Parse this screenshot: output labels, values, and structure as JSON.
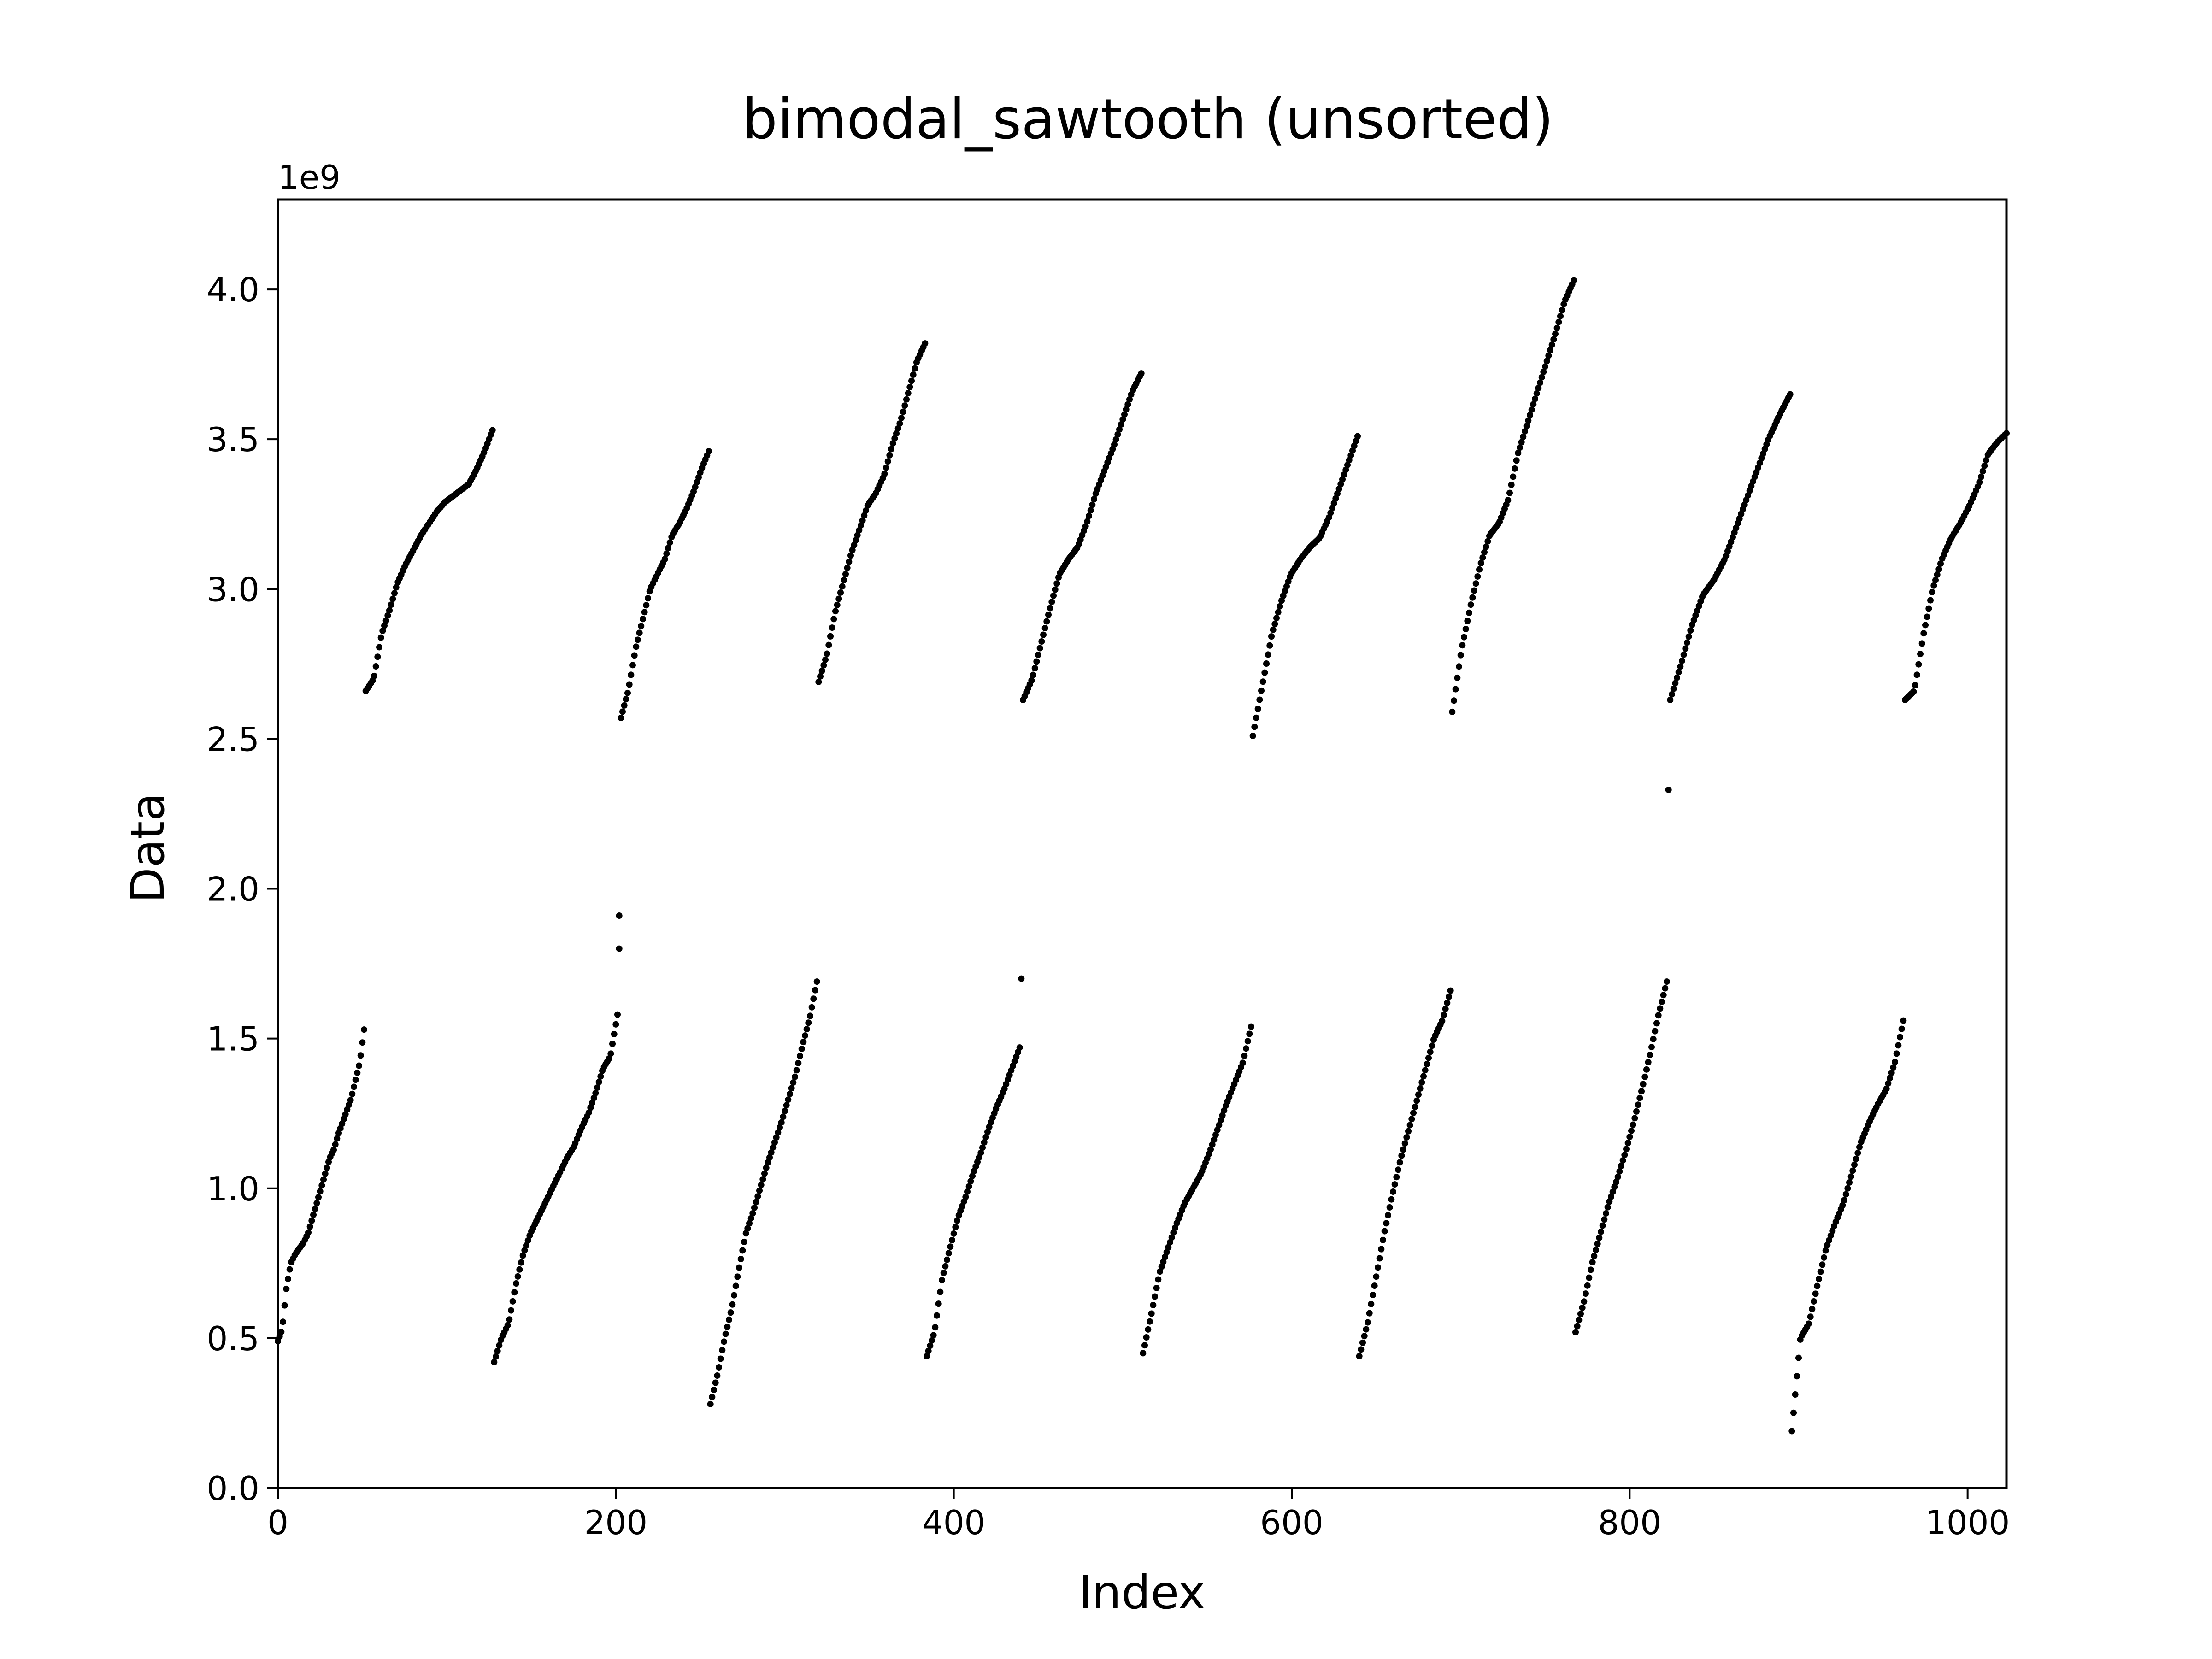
{
  "chart_data": {
    "type": "scatter",
    "title": "bimodal_sawtooth (unsorted)",
    "xlabel": "Index",
    "ylabel": "Data",
    "y_offset_label": "1e9",
    "xlim": [
      0,
      1023
    ],
    "ylim": [
      0,
      4.3
    ],
    "y_scale": 1000000000,
    "grid": false,
    "legend": "none",
    "marker_color": "#000000",
    "x_ticks": [
      0,
      200,
      400,
      600,
      800,
      1000
    ],
    "x_tick_labels": [
      "0",
      "200",
      "400",
      "600",
      "800",
      "1000"
    ],
    "y_ticks": [
      0,
      0.5,
      1.0,
      1.5,
      2.0,
      2.5,
      3.0,
      3.5,
      4.0
    ],
    "y_tick_labels": [
      "0.0",
      "0.5",
      "1.0",
      "1.5",
      "2.0",
      "2.5",
      "3.0",
      "3.5",
      "4.0"
    ],
    "segments": [
      {
        "x_start": 0,
        "x_end": 51,
        "y_values": [
          0.49,
          0.53,
          0.67,
          0.75,
          0.78,
          0.8,
          0.82,
          0.85,
          0.9,
          0.95,
          1.0,
          1.05,
          1.1,
          1.13,
          1.18,
          1.22,
          1.26,
          1.3,
          1.36,
          1.42,
          1.53
        ]
      },
      {
        "x_start": 52,
        "x_end": 127,
        "y_values": [
          2.66,
          2.7,
          2.85,
          2.93,
          3.02,
          3.08,
          3.13,
          3.18,
          3.22,
          3.26,
          3.29,
          3.31,
          3.33,
          3.35,
          3.4,
          3.46,
          3.53
        ]
      },
      {
        "x_start": 128,
        "x_end": 201,
        "y_values": [
          0.42,
          0.5,
          0.55,
          0.68,
          0.78,
          0.85,
          0.9,
          0.95,
          1.0,
          1.05,
          1.1,
          1.14,
          1.2,
          1.25,
          1.32,
          1.4,
          1.44,
          1.58
        ]
      },
      {
        "x_start": 202,
        "x_end": 202,
        "y_values": [
          1.8,
          1.91
        ]
      },
      {
        "x_start": 203,
        "x_end": 255,
        "y_values": [
          2.57,
          2.66,
          2.8,
          2.9,
          3.0,
          3.05,
          3.1,
          3.18,
          3.22,
          3.27,
          3.33,
          3.4,
          3.46
        ]
      },
      {
        "x_start": 256,
        "x_end": 319,
        "y_values": [
          0.28,
          0.38,
          0.5,
          0.6,
          0.73,
          0.85,
          0.92,
          1.0,
          1.08,
          1.15,
          1.22,
          1.3,
          1.38,
          1.48,
          1.57,
          1.69
        ]
      },
      {
        "x_start": 320,
        "x_end": 383,
        "y_values": [
          2.69,
          2.78,
          2.92,
          3.02,
          3.12,
          3.2,
          3.28,
          3.32,
          3.38,
          3.48,
          3.56,
          3.66,
          3.76,
          3.82
        ]
      },
      {
        "x_start": 384,
        "x_end": 439,
        "y_values": [
          0.44,
          0.52,
          0.7,
          0.8,
          0.9,
          0.97,
          1.05,
          1.12,
          1.2,
          1.27,
          1.33,
          1.4,
          1.47
        ]
      },
      {
        "x_start": 440,
        "x_end": 440,
        "y_values": [
          1.7
        ]
      },
      {
        "x_start": 441,
        "x_end": 511,
        "y_values": [
          2.63,
          2.7,
          2.82,
          2.94,
          3.05,
          3.1,
          3.14,
          3.22,
          3.32,
          3.4,
          3.48,
          3.57,
          3.66,
          3.72
        ]
      },
      {
        "x_start": 512,
        "x_end": 576,
        "y_values": [
          0.45,
          0.58,
          0.72,
          0.8,
          0.88,
          0.95,
          1.0,
          1.05,
          1.12,
          1.2,
          1.28,
          1.35,
          1.42,
          1.54
        ]
      },
      {
        "x_start": 577,
        "x_end": 639,
        "y_values": [
          2.51,
          2.68,
          2.85,
          2.96,
          3.05,
          3.1,
          3.14,
          3.17,
          3.24,
          3.33,
          3.42,
          3.51
        ]
      },
      {
        "x_start": 640,
        "x_end": 694,
        "y_values": [
          0.44,
          0.55,
          0.7,
          0.85,
          0.98,
          1.1,
          1.2,
          1.3,
          1.4,
          1.5,
          1.56,
          1.66
        ]
      },
      {
        "x_start": 695,
        "x_end": 767,
        "y_values": [
          2.59,
          2.8,
          2.95,
          3.08,
          3.18,
          3.22,
          3.3,
          3.45,
          3.55,
          3.65,
          3.75,
          3.85,
          3.96,
          4.03
        ]
      },
      {
        "x_start": 768,
        "x_end": 822,
        "y_values": [
          0.52,
          0.62,
          0.75,
          0.85,
          0.95,
          1.03,
          1.12,
          1.22,
          1.33,
          1.45,
          1.58,
          1.69
        ]
      },
      {
        "x_start": 823,
        "x_end": 823,
        "y_values": [
          2.33
        ]
      },
      {
        "x_start": 824,
        "x_end": 895,
        "y_values": [
          2.63,
          2.75,
          2.88,
          2.98,
          3.03,
          3.1,
          3.2,
          3.3,
          3.4,
          3.5,
          3.58,
          3.65
        ]
      },
      {
        "x_start": 896,
        "x_end": 962,
        "y_values": [
          0.19,
          0.5,
          0.55,
          0.68,
          0.8,
          0.88,
          0.95,
          1.05,
          1.15,
          1.22,
          1.28,
          1.33,
          1.42,
          1.56
        ]
      },
      {
        "x_start": 963,
        "x_end": 1023,
        "y_values": [
          2.63,
          2.66,
          2.85,
          3.0,
          3.1,
          3.17,
          3.22,
          3.28,
          3.35,
          3.45,
          3.49,
          3.52
        ]
      }
    ]
  }
}
